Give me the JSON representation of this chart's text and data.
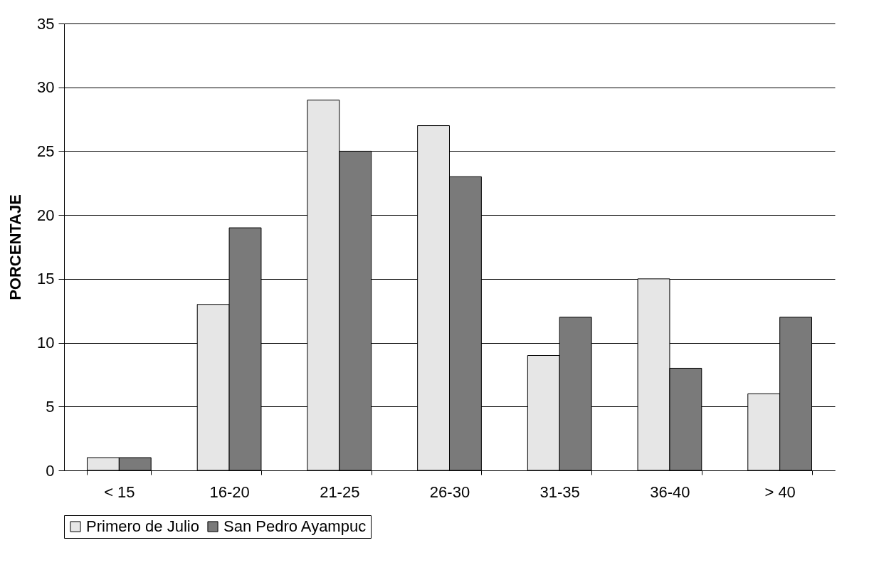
{
  "chart_data": {
    "type": "bar",
    "ylabel": "PORCENTAJE",
    "categories": [
      "< 15",
      "16-20",
      "21-25",
      "26-30",
      "31-35",
      "36-40",
      "> 40"
    ],
    "series": [
      {
        "name": "Primero de Julio",
        "color": "#e6e6e6",
        "values": [
          1,
          13,
          29,
          27,
          9,
          15,
          6
        ]
      },
      {
        "name": "San Pedro Ayampuc",
        "color": "#7a7a7a",
        "values": [
          1,
          19,
          25,
          23,
          12,
          8,
          12
        ]
      }
    ],
    "ylim": [
      0,
      35
    ],
    "yticks": [
      0,
      5,
      10,
      15,
      20,
      25,
      30,
      35
    ],
    "grid": "y",
    "legend": "bottom"
  }
}
